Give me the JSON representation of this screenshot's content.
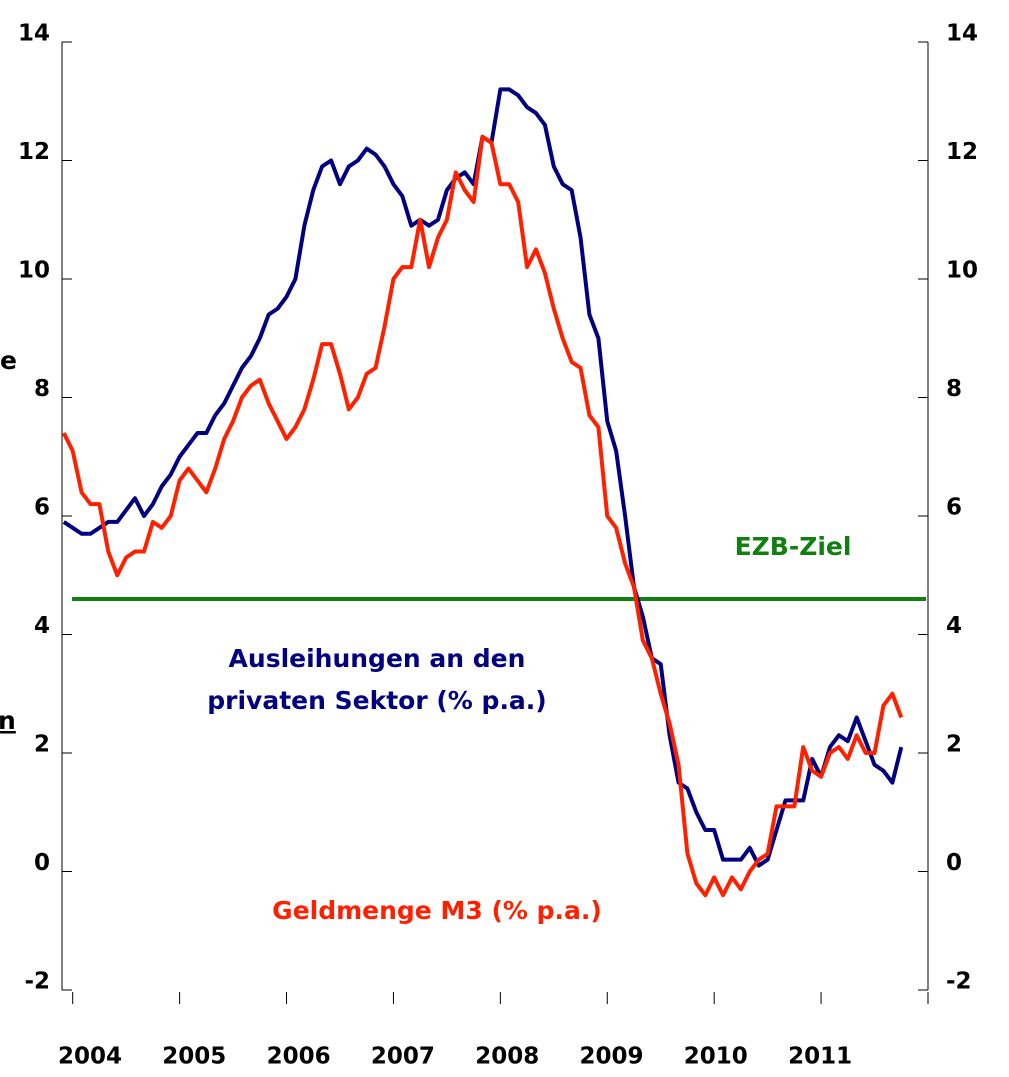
{
  "chart_data": {
    "type": "line",
    "x": [
      2003.917,
      2004.0,
      2004.083,
      2004.167,
      2004.25,
      2004.333,
      2004.417,
      2004.5,
      2004.583,
      2004.667,
      2004.75,
      2004.833,
      2004.917,
      2005.0,
      2005.083,
      2005.167,
      2005.25,
      2005.333,
      2005.417,
      2005.5,
      2005.583,
      2005.667,
      2005.75,
      2005.833,
      2005.917,
      2006.0,
      2006.083,
      2006.167,
      2006.25,
      2006.333,
      2006.417,
      2006.5,
      2006.583,
      2006.667,
      2006.75,
      2006.833,
      2006.917,
      2007.0,
      2007.083,
      2007.167,
      2007.25,
      2007.333,
      2007.417,
      2007.5,
      2007.583,
      2007.667,
      2007.75,
      2007.833,
      2007.917,
      2008.0,
      2008.083,
      2008.167,
      2008.25,
      2008.333,
      2008.417,
      2008.5,
      2008.583,
      2008.667,
      2008.75,
      2008.833,
      2008.917,
      2009.0,
      2009.083,
      2009.167,
      2009.25,
      2009.333,
      2009.417,
      2009.5,
      2009.583,
      2009.667,
      2009.75,
      2009.833,
      2009.917,
      2010.0,
      2010.083,
      2010.167,
      2010.25,
      2010.333,
      2010.417,
      2010.5,
      2010.583,
      2010.667,
      2010.75,
      2010.833,
      2010.917,
      2011.0,
      2011.083,
      2011.167,
      2011.25,
      2011.333,
      2011.417,
      2011.5,
      2011.583,
      2011.667,
      2011.75
    ],
    "series": [
      {
        "name": "Ausleihungen an den privaten Sektor (% p.a.)",
        "color": "#000080",
        "values": [
          5.9,
          5.8,
          5.7,
          5.7,
          5.8,
          5.9,
          5.9,
          6.1,
          6.3,
          6.0,
          6.2,
          6.5,
          6.7,
          7.0,
          7.2,
          7.4,
          7.4,
          7.7,
          7.9,
          8.2,
          8.5,
          8.7,
          9.0,
          9.4,
          9.5,
          9.7,
          10.0,
          10.9,
          11.5,
          11.9,
          12.0,
          11.6,
          11.9,
          12.0,
          12.2,
          12.1,
          11.9,
          11.6,
          11.4,
          10.9,
          11.0,
          10.9,
          11.0,
          11.5,
          11.7,
          11.8,
          11.6,
          12.4,
          12.3,
          13.2,
          13.2,
          13.1,
          12.9,
          12.8,
          12.6,
          11.9,
          11.6,
          11.5,
          10.7,
          9.4,
          9.0,
          7.6,
          7.1,
          6.0,
          4.8,
          4.3,
          3.6,
          3.5,
          2.3,
          1.5,
          1.4,
          1.0,
          0.7,
          0.7,
          0.2,
          0.2,
          0.2,
          0.4,
          0.1,
          0.2,
          0.7,
          1.2,
          1.2,
          1.2,
          1.9,
          1.6,
          2.1,
          2.3,
          2.2,
          2.6,
          2.2,
          1.8,
          1.7,
          1.5,
          2.1
        ]
      },
      {
        "name": "Geldmenge M3 (% p.a.)",
        "color": "#ff2000",
        "values": [
          7.4,
          7.1,
          6.4,
          6.2,
          6.2,
          5.4,
          5.0,
          5.3,
          5.4,
          5.4,
          5.9,
          5.8,
          6.0,
          6.6,
          6.8,
          6.6,
          6.4,
          6.8,
          7.3,
          7.6,
          8.0,
          8.2,
          8.3,
          7.9,
          7.6,
          7.3,
          7.5,
          7.8,
          8.3,
          8.9,
          8.9,
          8.4,
          7.8,
          8.0,
          8.4,
          8.5,
          9.2,
          10.0,
          10.2,
          10.2,
          11.0,
          10.2,
          10.7,
          11.0,
          11.8,
          11.5,
          11.3,
          12.4,
          12.3,
          11.6,
          11.6,
          11.3,
          10.2,
          10.5,
          10.1,
          9.5,
          9.0,
          8.6,
          8.5,
          7.7,
          7.5,
          6.0,
          5.8,
          5.2,
          4.8,
          3.9,
          3.6,
          3.0,
          2.5,
          1.8,
          0.3,
          -0.2,
          -0.4,
          -0.1,
          -0.4,
          -0.1,
          -0.3,
          0.0,
          0.2,
          0.3,
          1.1,
          1.1,
          1.1,
          2.1,
          1.7,
          1.6,
          2.0,
          2.1,
          1.9,
          2.3,
          2.0,
          2.0,
          2.8,
          3.0,
          2.6
        ]
      }
    ],
    "reference_line": {
      "label": "EZB-Ziel",
      "value": 4.6,
      "color": "#118011"
    },
    "annotations": [
      "Ausleihungen an den",
      "privaten Sektor (% p.a.)",
      "Geldmenge M3 (% p.a.)",
      "e",
      "n"
    ],
    "xlim": [
      2003.9,
      2012
    ],
    "xticks": [
      2004,
      2005,
      2006,
      2007,
      2008,
      2009,
      2010,
      2011,
      2012
    ],
    "xtick_labels": [
      "2004",
      "2005",
      "2006",
      "2007",
      "2008",
      "2009",
      "2010",
      "2011",
      null
    ],
    "ylim": [
      -2,
      14
    ],
    "yticks": [
      -2,
      0,
      2,
      4,
      6,
      8,
      10,
      12,
      14
    ],
    "y2lim": [
      -2,
      14
    ],
    "y2ticks": [
      -2,
      0,
      2,
      4,
      6,
      8,
      10,
      12,
      14
    ],
    "grid": false
  }
}
